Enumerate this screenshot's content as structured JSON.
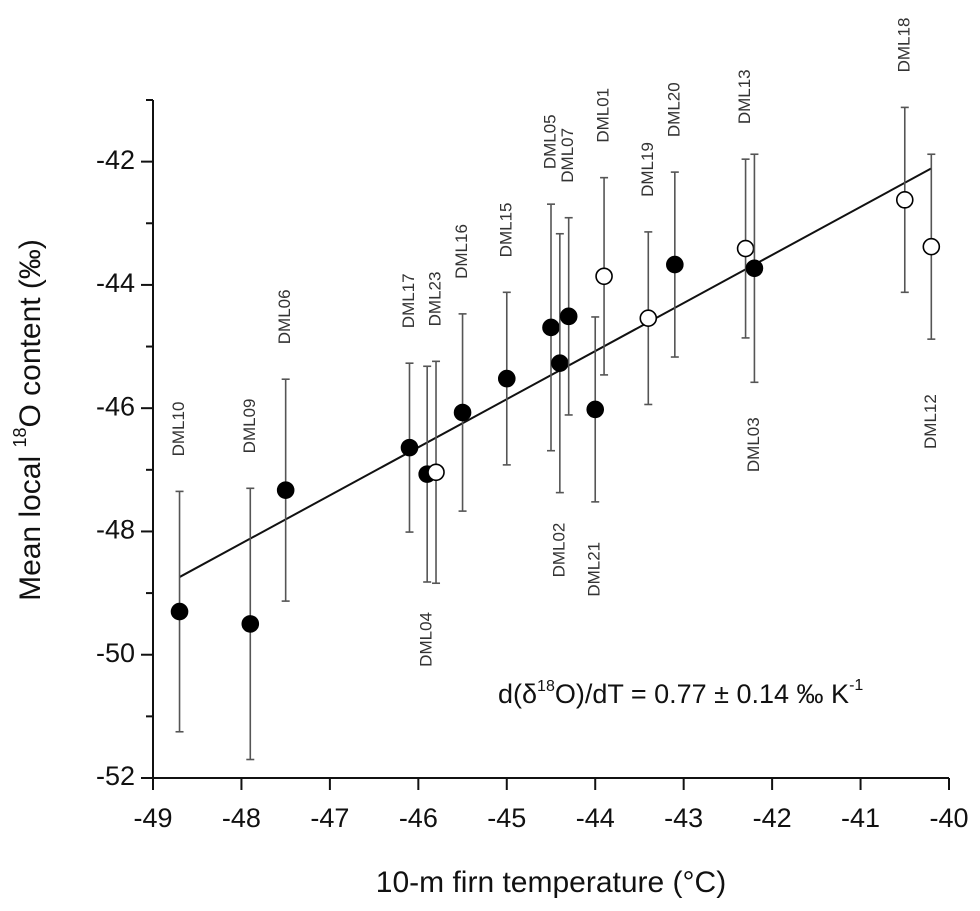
{
  "chart_data": {
    "type": "scatter",
    "xlabel": "10-m firn temperature (°C)",
    "ylabel": {
      "pre": "Mean local ",
      "sup": "18",
      "post": "O content (‰)"
    },
    "annotation": {
      "pre": "d(δ",
      "sup": "18",
      "mid": "O)/dT = 0.77 ± 0.14 ‰ K",
      "sup2": "-1"
    },
    "xlim": [
      -49,
      -40
    ],
    "ylim": [
      -52,
      -41
    ],
    "xticks": [
      -49,
      -48,
      -47,
      -46,
      -45,
      -44,
      -43,
      -42,
      -41,
      -40
    ],
    "yticks": [
      -52,
      -50,
      -48,
      -46,
      -44,
      -42
    ],
    "yminor": [
      -51,
      -49,
      -47,
      -45,
      -43,
      -41
    ],
    "point_labels": [
      "DML10",
      "DML09",
      "DML06",
      "DML17",
      "DML04",
      "DML23",
      "DML16",
      "DML15",
      "DML05",
      "DML02",
      "DML07",
      "DML21",
      "DML01",
      "DML19",
      "DML20",
      "DML13",
      "DML03",
      "DML18",
      "DML12"
    ],
    "x": [
      -48.7,
      -47.9,
      -47.5,
      -46.1,
      -45.9,
      -45.8,
      -45.5,
      -45.0,
      -44.5,
      -44.4,
      -44.3,
      -44.0,
      -43.9,
      -43.4,
      -43.1,
      -42.3,
      -42.2,
      -40.5,
      -40.2
    ],
    "values": [
      -49.3,
      -49.5,
      -47.33,
      -46.64,
      -47.07,
      -47.04,
      -46.07,
      -45.52,
      -44.69,
      -45.27,
      -44.51,
      -46.02,
      -43.86,
      -44.54,
      -43.67,
      -43.41,
      -43.73,
      -42.62,
      -43.38
    ],
    "errors": [
      1.95,
      2.2,
      1.8,
      1.37,
      1.75,
      1.8,
      1.6,
      1.4,
      2.0,
      2.1,
      1.6,
      1.5,
      1.6,
      1.4,
      1.5,
      1.45,
      1.85,
      1.5,
      1.5
    ],
    "markers": [
      "filled",
      "filled",
      "filled",
      "filled",
      "filled",
      "open",
      "filled",
      "filled",
      "filled",
      "filled",
      "filled",
      "filled",
      "open",
      "open",
      "filled",
      "open",
      "filled",
      "open",
      "open"
    ],
    "fit": {
      "x": [
        -48.7,
        -40.2
      ],
      "y": [
        -48.74,
        -42.11
      ]
    },
    "color": "#000000"
  }
}
